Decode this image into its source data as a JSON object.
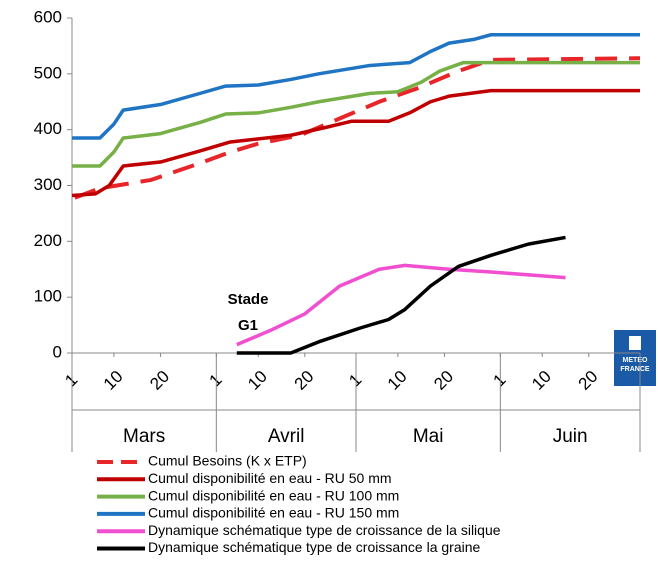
{
  "chart_data": {
    "type": "line",
    "ylim": [
      0,
      600
    ],
    "yticks": [
      0,
      100,
      200,
      300,
      400,
      500,
      600
    ],
    "xlim": [
      1,
      123
    ],
    "xticks": [
      {
        "value": 1,
        "label": "1"
      },
      {
        "value": 10,
        "label": "10"
      },
      {
        "value": 20,
        "label": "20"
      },
      {
        "value": 32,
        "label": "1"
      },
      {
        "value": 41,
        "label": "10"
      },
      {
        "value": 51,
        "label": "20"
      },
      {
        "value": 62,
        "label": "1"
      },
      {
        "value": 71,
        "label": "10"
      },
      {
        "value": 81,
        "label": "20"
      },
      {
        "value": 93,
        "label": "1"
      },
      {
        "value": 102,
        "label": "10"
      },
      {
        "value": 112,
        "label": "20"
      }
    ],
    "months": [
      "Mars",
      "Avril",
      "Mai",
      "Juin"
    ],
    "annotation": [
      "Stade",
      "G1"
    ],
    "logo": [
      "METEO",
      "FRANCE"
    ],
    "series": [
      {
        "name": "Cumul Besoins (K x ETP)",
        "color": "#e8262a",
        "dash": true,
        "x": [
          1.6,
          7,
          18,
          28.5,
          35,
          41,
          50,
          58.5,
          67,
          75.5,
          84,
          91,
          123
        ],
        "values": [
          278,
          295,
          310,
          340,
          360,
          375,
          390,
          420,
          450,
          475,
          505,
          525,
          528
        ]
      },
      {
        "name": "Cumul disponibilité en eau - RU 50 mm",
        "color": "#c00000",
        "dash": false,
        "x": [
          1,
          6,
          9,
          12,
          20,
          28.5,
          35,
          48,
          56,
          61,
          69,
          73.5,
          78,
          82,
          91,
          123
        ],
        "values": [
          282,
          285,
          300,
          335,
          342,
          362,
          378,
          390,
          405,
          415,
          415,
          430,
          450,
          460,
          470,
          470
        ]
      },
      {
        "name": "Cumul disponibilité en eau - RU 100 mm",
        "color": "#77b046",
        "dash": false,
        "x": [
          1,
          7,
          10,
          12,
          20,
          28.5,
          34,
          41,
          48,
          54,
          65,
          71,
          76,
          80,
          85,
          123
        ],
        "values": [
          335,
          335,
          360,
          385,
          393,
          413,
          428,
          430,
          440,
          450,
          465,
          468,
          485,
          505,
          520,
          520
        ]
      },
      {
        "name": "Cumul disponibilité en eau - RU 150 mm",
        "color": "#1f75c4",
        "dash": false,
        "x": [
          1,
          7,
          10,
          12,
          20,
          28.5,
          34,
          41,
          48,
          54,
          65,
          73.5,
          78,
          82,
          87.5,
          91,
          123
        ],
        "values": [
          385,
          385,
          410,
          435,
          445,
          465,
          478,
          480,
          490,
          500,
          515,
          520,
          540,
          555,
          562,
          570,
          570
        ]
      },
      {
        "name": "Dynamique schématique type de croissance de la silique",
        "color": "#f04fd0",
        "dash": false,
        "x": [
          36.4,
          43.5,
          51,
          58.5,
          67,
          72.5,
          82,
          91,
          107
        ],
        "values": [
          15,
          40,
          70,
          120,
          150,
          157,
          150,
          145,
          135
        ]
      },
      {
        "name": "Dynamique schématique type de croissance la graine",
        "color": "#000000",
        "dash": false,
        "x": [
          36.4,
          48,
          54,
          63,
          69,
          72.5,
          78,
          84,
          91,
          99,
          107
        ],
        "values": [
          0,
          0,
          20,
          45,
          60,
          78,
          120,
          155,
          175,
          195,
          207
        ]
      }
    ]
  }
}
